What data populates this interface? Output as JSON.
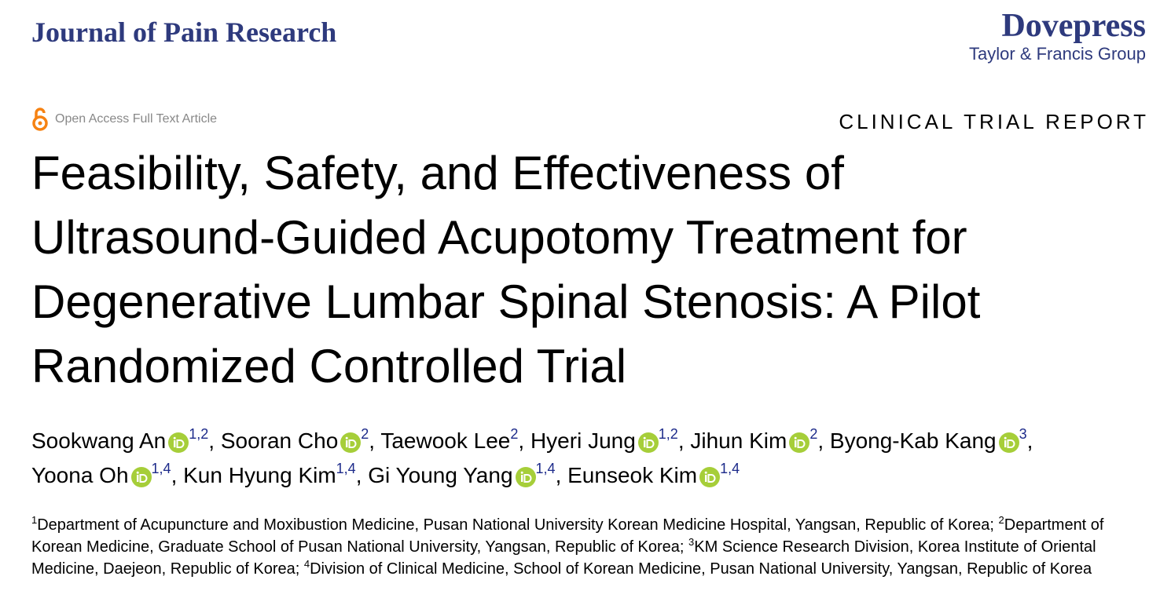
{
  "header": {
    "journal": "Journal of Pain Research",
    "publisher": "Dovepress",
    "publisher_group": "Taylor & Francis Group"
  },
  "access": "Open Access Full Text Article",
  "article_type": "CLINICAL TRIAL REPORT",
  "title_lines": [
    "Feasibility, Safety, and Effectiveness of",
    "Ultrasound-Guided Acupotomy Treatment for",
    "Degenerative Lumbar Spinal Stenosis: A Pilot",
    "Randomized Controlled Trial"
  ],
  "author_separator": ",",
  "authors": [
    {
      "name": "Sookwang An",
      "orcid": true,
      "affiliations": "1,2"
    },
    {
      "name": "Sooran Cho",
      "orcid": true,
      "affiliations": "2"
    },
    {
      "name": "Taewook Lee",
      "orcid": false,
      "affiliations": "2"
    },
    {
      "name": "Hyeri Jung",
      "orcid": true,
      "affiliations": "1,2"
    },
    {
      "name": "Jihun Kim",
      "orcid": true,
      "affiliations": "2"
    },
    {
      "name": "Byong-Kab Kang",
      "orcid": true,
      "affiliations": "3"
    },
    {
      "name": "Yoona Oh",
      "orcid": true,
      "affiliations": "1,4"
    },
    {
      "name": "Kun Hyung Kim",
      "orcid": false,
      "affiliations": "1,4"
    },
    {
      "name": "Gi Young Yang",
      "orcid": true,
      "affiliations": "1,4"
    },
    {
      "name": "Eunseok Kim",
      "orcid": true,
      "affiliations": "1,4"
    }
  ],
  "affiliations": [
    {
      "number": "1",
      "text": "Department of Acupuncture and Moxibustion Medicine, Pusan National University Korean Medicine Hospital, Yangsan, Republic of Korea;"
    },
    {
      "number": "2",
      "text": "Department of Korean Medicine, Graduate School of Pusan National University, Yangsan, Republic of Korea;"
    },
    {
      "number": "3",
      "text": "KM Science Research Division, Korea Institute of Oriental Medicine, Daejeon, Republic of Korea;"
    },
    {
      "number": "4",
      "text": "Division of Clinical Medicine, School of Korean Medicine, Pusan National University, Yangsan, Republic of Korea"
    }
  ]
}
